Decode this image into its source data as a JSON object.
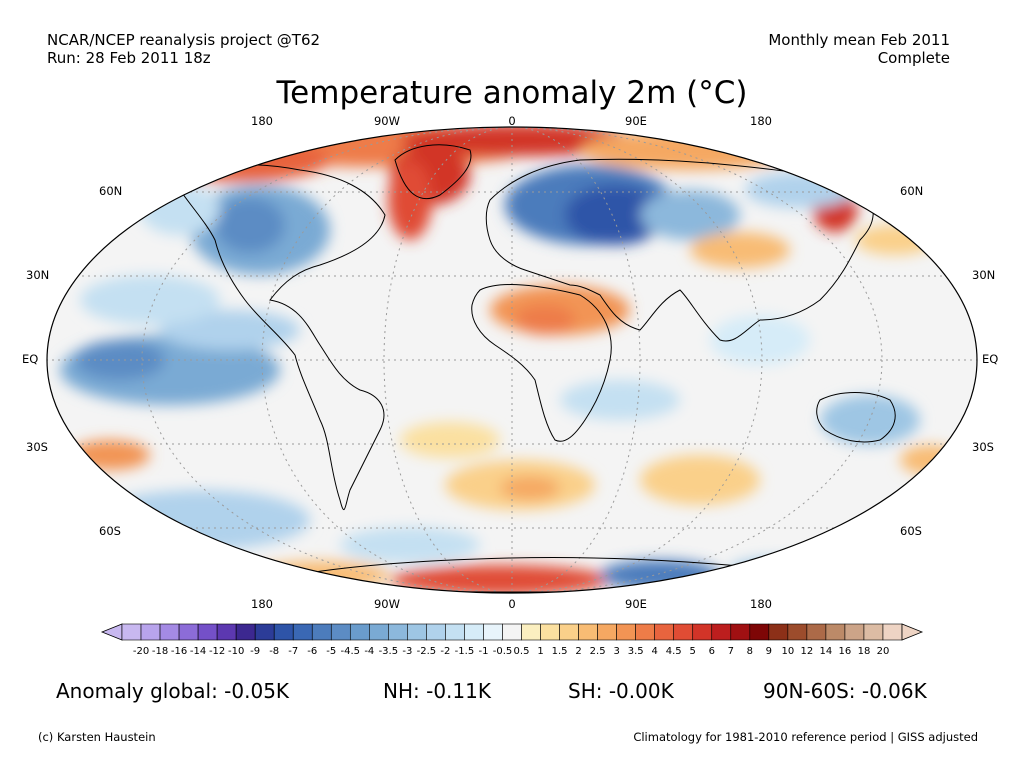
{
  "header": {
    "left_line1": "NCAR/NCEP reanalysis project @T62",
    "left_line2": "Run: 28 Feb 2011 18z",
    "right_line1": "Monthly mean Feb 2011",
    "right_line2": "Complete"
  },
  "title": "Temperature anomaly 2m (°C)",
  "map": {
    "lon_labels": [
      "180",
      "90W",
      "0",
      "90E",
      "180"
    ],
    "lat_labels": [
      "60N",
      "30N",
      "EQ",
      "30S",
      "60S"
    ]
  },
  "colorbar": {
    "labels": [
      "-20",
      "-18",
      "-16",
      "-14",
      "-12",
      "-10",
      "-9",
      "-8",
      "-7",
      "-6",
      "-5",
      "-4.5",
      "-4",
      "-3.5",
      "-3",
      "-2.5",
      "-2",
      "-1.5",
      "-1",
      "-0.5",
      "0.5",
      "1",
      "1.5",
      "2",
      "2.5",
      "3",
      "3.5",
      "4",
      "4.5",
      "5",
      "6",
      "7",
      "8",
      "9",
      "10",
      "12",
      "14",
      "16",
      "18",
      "20"
    ],
    "colors": [
      "#c8b8f0",
      "#b8a4ec",
      "#a48ae4",
      "#8c6cd8",
      "#7450c8",
      "#5c38b0",
      "#3c2890",
      "#2c3c98",
      "#2e54a8",
      "#3a68b4",
      "#4c7cbc",
      "#5c8cc4",
      "#6a9ccc",
      "#7aaad4",
      "#8cb8dc",
      "#9ec6e4",
      "#b0d2ec",
      "#c4e0f2",
      "#d6ecf8",
      "#e8f4fb",
      "#f4f4f4",
      "#fbefc0",
      "#fbe0a0",
      "#fad08a",
      "#f8bc74",
      "#f5a862",
      "#f29454",
      "#ee7c48",
      "#e8643e",
      "#e04c34",
      "#d23428",
      "#bc1e1e",
      "#a01012",
      "#7e0606",
      "#8c3018",
      "#9c4c2c",
      "#ac6a48",
      "#bc8a68",
      "#cca488",
      "#dcbca4",
      "#eed4c4"
    ]
  },
  "stats": {
    "global": "Anomaly global: -0.05K",
    "nh": "NH: -0.11K",
    "sh": "SH: -0.00K",
    "polar": "90N-60S: -0.06K"
  },
  "footer": {
    "credit": "(c) Karsten Haustein",
    "note": "Climatology for 1981-2010 reference period | GISS adjusted"
  }
}
